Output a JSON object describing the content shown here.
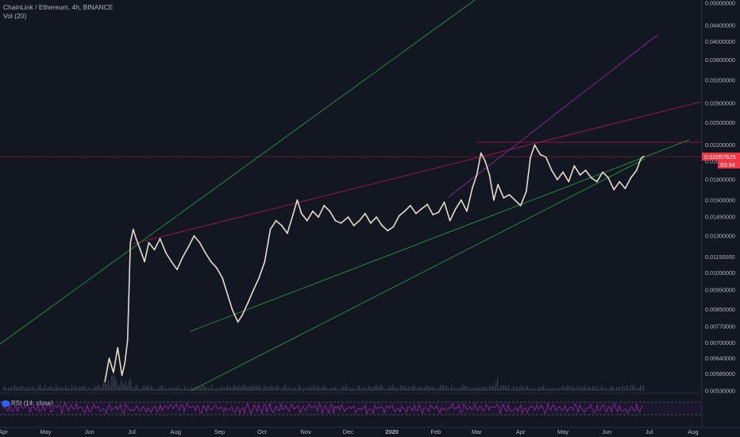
{
  "header": {
    "title": "ChainLink / Ethereum, 4h, BINANCE",
    "volume_label": "Vol (20)"
  },
  "rsi_panel": {
    "label": "RSI (14, close)"
  },
  "price_axis": {
    "current_price": "0.02057625",
    "countdown": "53:34"
  },
  "colors": {
    "background": "#131722",
    "candle": "#e8dcc8",
    "channel_lines": "#26a641",
    "resistance_lines": "#b5164f",
    "purple_line": "#9c27b0",
    "price_line": "#f23645",
    "rsi_line": "#9c27b0",
    "volume": "#3a3f4d"
  },
  "chart_data": {
    "type": "line",
    "title": "ChainLink / Ethereum, 4h, BINANCE",
    "xlabel": "",
    "ylabel": "",
    "scale": "log",
    "grid": false,
    "y_ticks": [
      "0.05000000",
      "0.04400000",
      "0.04000000",
      "0.03600000",
      "0.03200000",
      "0.02800000",
      "0.02500000",
      "0.02200000",
      "0.02000000",
      "0.01800000",
      "0.01600000",
      "0.01450000",
      "0.01300000",
      "0.01150000",
      "0.01050000",
      "0.00950000",
      "0.00850000",
      "0.00770000",
      "0.00700000",
      "0.00640000",
      "0.00585000",
      "0.00530000"
    ],
    "x_ticks": [
      "Apr",
      "May",
      "Jun",
      "Jul",
      "Aug",
      "Sep",
      "Oct",
      "Nov",
      "Dec",
      "2020",
      "Feb",
      "Mar",
      "Apr",
      "May",
      "Jun",
      "Jul",
      "Aug"
    ],
    "ylim": [
      0.0053,
      0.05
    ],
    "series": [
      {
        "values": [
          [
            "2019-06-12",
            0.0056
          ],
          [
            "2019-06-15",
            0.0064
          ],
          [
            "2019-06-18",
            0.0059
          ],
          [
            "2019-06-21",
            0.0068
          ],
          [
            "2019-06-24",
            0.0058
          ],
          [
            "2019-06-26",
            0.0062
          ],
          [
            "2019-06-28",
            0.0071
          ],
          [
            "2019-06-30",
            0.0125
          ],
          [
            "2019-07-02",
            0.0135
          ],
          [
            "2019-07-04",
            0.0128
          ],
          [
            "2019-07-07",
            0.012
          ],
          [
            "2019-07-10",
            0.0112
          ],
          [
            "2019-07-13",
            0.0125
          ],
          [
            "2019-07-17",
            0.012
          ],
          [
            "2019-07-21",
            0.0128
          ],
          [
            "2019-07-25",
            0.0118
          ],
          [
            "2019-07-29",
            0.0112
          ],
          [
            "2019-08-02",
            0.0107
          ],
          [
            "2019-08-06",
            0.0115
          ],
          [
            "2019-08-10",
            0.0122
          ],
          [
            "2019-08-14",
            0.013
          ],
          [
            "2019-08-18",
            0.0125
          ],
          [
            "2019-08-22",
            0.0118
          ],
          [
            "2019-08-26",
            0.0112
          ],
          [
            "2019-08-30",
            0.0108
          ],
          [
            "2019-09-03",
            0.0102
          ],
          [
            "2019-09-07",
            0.0092
          ],
          [
            "2019-09-10",
            0.0085
          ],
          [
            "2019-09-14",
            0.0079
          ],
          [
            "2019-09-17",
            0.0082
          ],
          [
            "2019-09-21",
            0.0088
          ],
          [
            "2019-09-25",
            0.0095
          ],
          [
            "2019-09-29",
            0.0102
          ],
          [
            "2019-10-03",
            0.0112
          ],
          [
            "2019-10-07",
            0.0135
          ],
          [
            "2019-10-11",
            0.0142
          ],
          [
            "2019-10-15",
            0.0138
          ],
          [
            "2019-10-19",
            0.0132
          ],
          [
            "2019-10-23",
            0.0147
          ],
          [
            "2019-10-26",
            0.016
          ],
          [
            "2019-10-29",
            0.0148
          ],
          [
            "2019-11-02",
            0.0142
          ],
          [
            "2019-11-06",
            0.015
          ],
          [
            "2019-11-10",
            0.0145
          ],
          [
            "2019-11-14",
            0.0155
          ],
          [
            "2019-11-18",
            0.015
          ],
          [
            "2019-11-22",
            0.0142
          ],
          [
            "2019-11-26",
            0.014
          ],
          [
            "2019-12-01",
            0.0145
          ],
          [
            "2019-12-05",
            0.0138
          ],
          [
            "2019-12-09",
            0.0142
          ],
          [
            "2019-12-13",
            0.0148
          ],
          [
            "2019-12-17",
            0.014
          ],
          [
            "2019-12-21",
            0.0145
          ],
          [
            "2019-12-25",
            0.0138
          ],
          [
            "2019-12-29",
            0.0134
          ],
          [
            "2020-01-02",
            0.0137
          ],
          [
            "2020-01-06",
            0.0146
          ],
          [
            "2020-01-10",
            0.015
          ],
          [
            "2020-01-14",
            0.0155
          ],
          [
            "2020-01-18",
            0.0148
          ],
          [
            "2020-01-22",
            0.0152
          ],
          [
            "2020-01-26",
            0.0156
          ],
          [
            "2020-01-30",
            0.0147
          ],
          [
            "2020-02-03",
            0.0149
          ],
          [
            "2020-02-07",
            0.0158
          ],
          [
            "2020-02-11",
            0.0142
          ],
          [
            "2020-02-15",
            0.0152
          ],
          [
            "2020-02-19",
            0.016
          ],
          [
            "2020-02-23",
            0.015
          ],
          [
            "2020-02-27",
            0.0172
          ],
          [
            "2020-03-01",
            0.0185
          ],
          [
            "2020-03-04",
            0.021
          ],
          [
            "2020-03-07",
            0.02
          ],
          [
            "2020-03-10",
            0.0185
          ],
          [
            "2020-03-13",
            0.016
          ],
          [
            "2020-03-16",
            0.0175
          ],
          [
            "2020-03-20",
            0.0162
          ],
          [
            "2020-03-24",
            0.0165
          ],
          [
            "2020-03-28",
            0.016
          ],
          [
            "2020-04-01",
            0.0155
          ],
          [
            "2020-04-05",
            0.0168
          ],
          [
            "2020-04-08",
            0.0205
          ],
          [
            "2020-04-11",
            0.022
          ],
          [
            "2020-04-15",
            0.0208
          ],
          [
            "2020-04-19",
            0.0205
          ],
          [
            "2020-04-23",
            0.019
          ],
          [
            "2020-04-27",
            0.018
          ],
          [
            "2020-05-01",
            0.0188
          ],
          [
            "2020-05-05",
            0.0178
          ],
          [
            "2020-05-09",
            0.0195
          ],
          [
            "2020-05-13",
            0.0185
          ],
          [
            "2020-05-17",
            0.019
          ],
          [
            "2020-05-21",
            0.0182
          ],
          [
            "2020-05-25",
            0.0178
          ],
          [
            "2020-05-29",
            0.0188
          ],
          [
            "2020-06-02",
            0.0182
          ],
          [
            "2020-06-06",
            0.017
          ],
          [
            "2020-06-10",
            0.0178
          ],
          [
            "2020-06-14",
            0.0171
          ],
          [
            "2020-06-18",
            0.0182
          ],
          [
            "2020-06-22",
            0.019
          ],
          [
            "2020-06-25",
            0.0203
          ],
          [
            "2020-06-27",
            0.0206
          ]
        ]
      }
    ],
    "annotations": {
      "current_price": 0.02057625,
      "horizontal_price_line": 0.02057625,
      "rsi_range": [
        0,
        100
      ]
    }
  }
}
